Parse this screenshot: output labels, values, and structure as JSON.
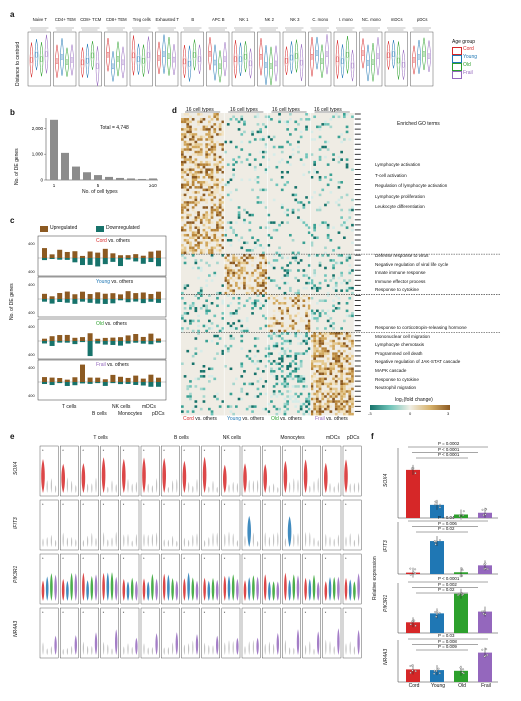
{
  "panel_a": {
    "label": "a",
    "ylabel": "Distance to centroid",
    "groups": [
      "Naive T",
      "CD4+ TEM",
      "CD8+ TCM",
      "CD8+ TEM",
      "Treg cells",
      "Exhausted T",
      "B",
      "APC B",
      "NK 1",
      "NK 2",
      "NK 3",
      "C. mono",
      "I. mono",
      "NC. mono",
      "mDCs",
      "pDCs"
    ],
    "legend_title": "Age group",
    "legend": [
      {
        "name": "Cord",
        "color": "#d62728"
      },
      {
        "name": "Young",
        "color": "#1f77b4"
      },
      {
        "name": "Old",
        "color": "#2ca02c"
      },
      {
        "name": "Frail",
        "color": "#9467bd"
      }
    ]
  },
  "panel_b": {
    "label": "b",
    "ylabel": "No. of DE genes",
    "xlabel": "No. of cell types",
    "total": "Total = 4,748",
    "yticks": [
      "0",
      "1,000",
      "2,000"
    ],
    "xticks": [
      "1",
      "5",
      "≥10"
    ]
  },
  "chart_data": {
    "type": "bar",
    "categories": [
      "1",
      "2",
      "3",
      "4",
      "5",
      "6",
      "7",
      "8",
      "9",
      "≥10"
    ],
    "values": [
      2330,
      1050,
      520,
      300,
      190,
      120,
      80,
      60,
      40,
      60
    ],
    "xlabel": "No. of cell types",
    "ylabel": "No. of DE genes",
    "ylim": [
      0,
      2400
    ]
  },
  "panel_c": {
    "label": "c",
    "ylabel": "No. of DE genes",
    "legend_up": "Upregulated",
    "legend_down": "Downregulated",
    "up_color": "#8c5a22",
    "down_color": "#17736b",
    "facets": [
      {
        "prefix": "Cord",
        "suffix": " vs. others",
        "color": "#d62728"
      },
      {
        "prefix": "Young",
        "suffix": " vs. others",
        "color": "#1f77b4"
      },
      {
        "prefix": "Old",
        "suffix": " vs. others",
        "color": "#2ca02c"
      },
      {
        "prefix": "Frail",
        "suffix": " vs. others",
        "color": "#9467bd"
      }
    ],
    "ytick": "400",
    "x_groups": [
      "T cells",
      "B cells",
      "NK cells",
      "Monocytes",
      "mDCs",
      "pDCs"
    ]
  },
  "panel_d": {
    "label": "d",
    "col_headers": [
      "16 cell types",
      "16 cell types",
      "16 cell types",
      "16 cell types"
    ],
    "go_title": "Enriched GO terms",
    "go_block1": [
      "Lymphocyte activation",
      "T-cell activation",
      "Regulation of lymphocyte activation",
      "Lymphocyte proliferation",
      "Leukocyte differentiation"
    ],
    "go_block2": [
      "Defense response to virus",
      "Negative regulation of viral life cycle",
      "Innate immune response",
      "Immune effector process",
      "Response to cytokine"
    ],
    "go_block3": [
      "Response to corticotropin-releasing hormone",
      "Mononuclear cell migration",
      "Lymphocyte chemotaxis",
      "Programmed cell death",
      "Negative regulation of JAK-STAT cascade",
      "MAPK cascade",
      "Response to cytokine",
      "Neutrophil migration"
    ],
    "colorbar_title": "log₂(fold change)",
    "colorbar_ticks": [
      "-3",
      "0",
      "3"
    ],
    "bottom_labels": [
      {
        "prefix": "Cord",
        "suffix": " vs. others",
        "color": "#d62728"
      },
      {
        "prefix": "Young",
        "suffix": " vs. others",
        "color": "#1f77b4"
      },
      {
        "prefix": "Old",
        "suffix": " vs. others",
        "color": "#2ca02c"
      },
      {
        "prefix": "Frail",
        "suffix": " vs. others",
        "color": "#9467bd"
      }
    ]
  },
  "panel_e": {
    "label": "e",
    "top_groups": [
      "T cells",
      "B cells",
      "NK cells",
      "Monocytes",
      "mDCs",
      "pDCs"
    ],
    "genes": [
      "SOX4",
      "IFIT3",
      "PIK3R1",
      "NR4A3"
    ]
  },
  "panel_f": {
    "label": "f",
    "ylabel": "Relative expression",
    "genes": [
      "SOX4",
      "IFIT3",
      "PIK3R1",
      "NR4A3"
    ],
    "groups": [
      "Cord",
      "Young",
      "Old",
      "Frail"
    ],
    "pvals": [
      [
        "P = 0.0002",
        "P < 0.0001",
        "P < 0.0001"
      ],
      [
        "P = 0.04",
        "P = 0.006",
        "P = 0.02"
      ],
      [
        "P < 0.0001",
        "P = 0.002",
        "P = 0.02"
      ],
      [
        "P = 0.03",
        "P = 0.008",
        "P = 0.009"
      ]
    ]
  }
}
